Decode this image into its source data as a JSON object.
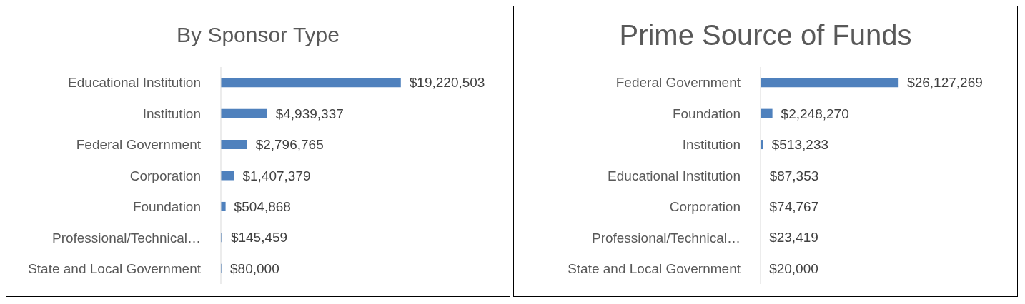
{
  "chart_data": [
    {
      "type": "bar",
      "orientation": "horizontal",
      "title": "By Sponsor Type",
      "categories": [
        "Educational Institution",
        "Institution",
        "Federal Government",
        "Corporation",
        "Foundation",
        "Professional/Technical…",
        "State and Local Government"
      ],
      "series": [
        {
          "color": "#4f81bd",
          "values": [
            19220503,
            4939337,
            2796765,
            1407379,
            504868,
            145459,
            80000
          ],
          "value_labels": [
            "$19,220,503",
            "$4,939,337",
            "$2,796,765",
            "$1,407,379",
            "$504,868",
            "$145,459",
            "$80,000"
          ]
        }
      ],
      "tick_labels": "y",
      "legend": false
    },
    {
      "type": "bar",
      "orientation": "horizontal",
      "title": "Prime Source of Funds",
      "categories": [
        "Federal Government",
        "Foundation",
        "Institution",
        "Educational Institution",
        "Corporation",
        "Professional/Technical…",
        "State and Local Government"
      ],
      "series": [
        {
          "color": "#4f81bd",
          "values": [
            26127269,
            2248270,
            513233,
            87353,
            74767,
            23419,
            20000
          ],
          "value_labels": [
            "$26,127,269",
            "$2,248,270",
            "$513,233",
            "$87,353",
            "$74,767",
            "$23,419",
            "$20,000"
          ]
        }
      ],
      "tick_labels": "y",
      "legend": false
    }
  ]
}
